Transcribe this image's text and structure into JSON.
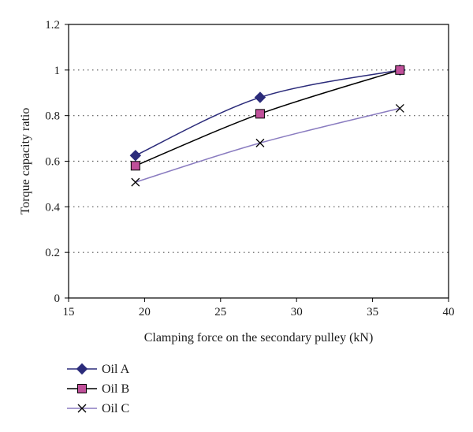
{
  "chart_data": {
    "type": "line",
    "xlabel": "Clamping force on the secondary pulley (kN)",
    "ylabel": "Torque capacity ratio",
    "xlim": [
      15,
      40
    ],
    "ylim": [
      0,
      1.2
    ],
    "xticks": [
      15,
      20,
      25,
      30,
      35,
      40
    ],
    "yticks": [
      0,
      0.2,
      0.4,
      0.6,
      0.8,
      1,
      1.2
    ],
    "xtick_labels": [
      "15",
      "20",
      "25",
      "30",
      "35",
      "40"
    ],
    "ytick_labels": [
      "0",
      "0.2",
      "0.4",
      "0.6",
      "0.8",
      "1",
      "1.2"
    ],
    "grid": "horizontal dotted",
    "legend_position": "bottom-left, below plot",
    "series": [
      {
        "name": "Oil A",
        "marker": "diamond",
        "color": "#2b2b7a",
        "x": [
          19.4,
          27.6,
          36.8
        ],
        "y": [
          0.625,
          0.88,
          1.0
        ]
      },
      {
        "name": "Oil B",
        "marker": "square",
        "color": "#000000",
        "marker_fill": "#c0509a",
        "x": [
          19.4,
          27.6,
          36.8
        ],
        "y": [
          0.58,
          0.808,
          1.0
        ]
      },
      {
        "name": "Oil C",
        "marker": "x",
        "color": "#8a7cc0",
        "x": [
          19.4,
          27.6,
          36.8
        ],
        "y": [
          0.508,
          0.68,
          0.832
        ]
      }
    ]
  }
}
